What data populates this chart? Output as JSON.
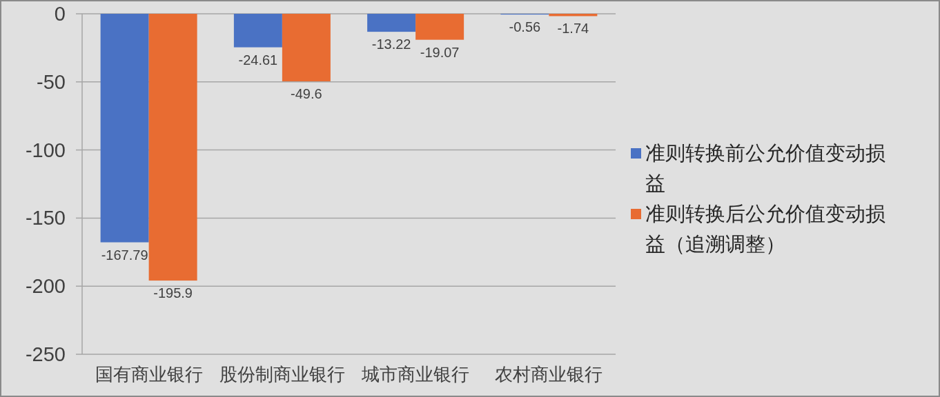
{
  "chart_data": {
    "type": "bar",
    "categories": [
      "国有商业银行",
      "股份制商业银行",
      "城市商业银行",
      "农村商业银行"
    ],
    "series": [
      {
        "name": "准则转换前公允价值变动损益",
        "color": "#4a72c4",
        "values": [
          -167.79,
          -24.61,
          -13.22,
          -0.56
        ]
      },
      {
        "name": "准则转换后公允价值变动损益（追溯调整）",
        "color": "#e86c32",
        "values": [
          -195.9,
          -49.6,
          -19.07,
          -1.74
        ]
      }
    ],
    "ylim": [
      -250,
      0
    ],
    "yticks": [
      -250,
      -200,
      -150,
      -100,
      -50,
      0
    ],
    "data_labels": true,
    "grid": "y",
    "legend": "right"
  }
}
